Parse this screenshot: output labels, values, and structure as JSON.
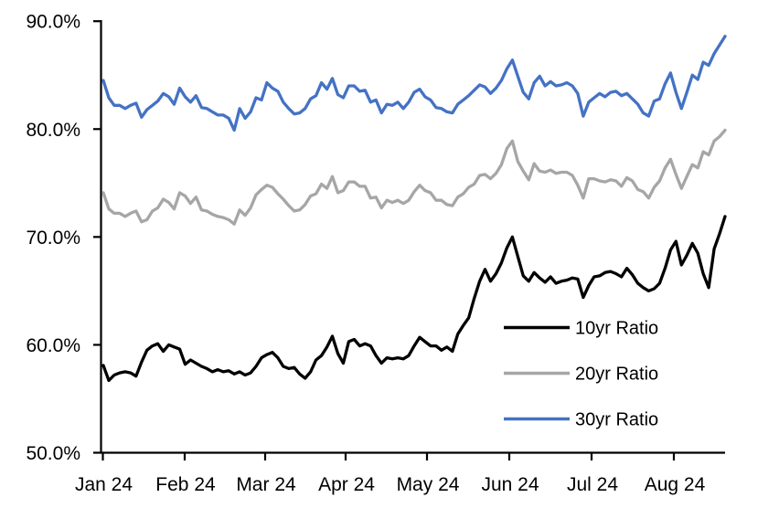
{
  "chart_data": {
    "type": "line",
    "title": "",
    "x_axis": {
      "tick_labels": [
        "Jan 24",
        "Feb 24",
        "Mar 24",
        "Apr 24",
        "May 24",
        "Jun 24",
        "Jul 24",
        "Aug 24"
      ],
      "grid": false
    },
    "y_axis": {
      "tick_labels": [
        "90.0%",
        "80.0%",
        "70.0%",
        "60.0%",
        "50.0%"
      ],
      "tick_values": [
        90,
        80,
        70,
        60,
        50
      ],
      "min": 50,
      "max": 90,
      "unit": "%",
      "grid": false
    },
    "legend": {
      "position": "inside-bottom-right",
      "entries": [
        "10yr Ratio",
        "20yr Ratio",
        "30yr Ratio"
      ]
    },
    "series": [
      {
        "name": "10yr Ratio",
        "color": "#000000",
        "values": [
          58.1,
          56.7,
          57.2,
          57.4,
          57.5,
          57.4,
          57.1,
          58.4,
          59.5,
          59.9,
          60.1,
          59.4,
          60.0,
          59.8,
          59.6,
          58.2,
          58.6,
          58.3,
          58.0,
          57.8,
          57.5,
          57.7,
          57.5,
          57.6,
          57.3,
          57.5,
          57.2,
          57.4,
          58.0,
          58.8,
          59.1,
          59.3,
          58.8,
          58.0,
          57.8,
          57.9,
          57.3,
          56.9,
          57.5,
          58.6,
          59.0,
          59.8,
          60.8,
          59.2,
          58.3,
          60.3,
          60.5,
          59.9,
          60.1,
          59.9,
          59.0,
          58.3,
          58.8,
          58.7,
          58.8,
          58.7,
          59.0,
          59.9,
          60.7,
          60.3,
          59.9,
          59.9,
          59.5,
          59.8,
          59.4,
          61.0,
          61.8,
          62.5,
          64.3,
          65.9,
          67.0,
          65.9,
          66.6,
          67.6,
          69.0,
          70.0,
          68.2,
          66.4,
          65.9,
          66.7,
          66.2,
          65.8,
          66.3,
          65.7,
          65.9,
          66.0,
          66.2,
          66.1,
          64.4,
          65.5,
          66.3,
          66.4,
          66.7,
          66.8,
          66.6,
          66.3,
          67.1,
          66.5,
          65.7,
          65.3,
          65.0,
          65.2,
          65.7,
          67.1,
          68.8,
          69.6,
          67.4,
          68.3,
          69.4,
          68.5,
          66.6,
          65.3,
          68.9,
          70.3,
          71.9
        ]
      },
      {
        "name": "20yr Ratio",
        "color": "#A6A6A6",
        "values": [
          74.1,
          72.6,
          72.2,
          72.2,
          71.9,
          72.2,
          72.4,
          71.4,
          71.6,
          72.4,
          72.7,
          73.5,
          73.2,
          72.6,
          74.1,
          73.8,
          73.1,
          73.7,
          72.5,
          72.4,
          72.1,
          71.9,
          71.8,
          71.6,
          71.2,
          72.5,
          72.0,
          72.7,
          73.9,
          74.4,
          74.8,
          74.6,
          74.0,
          73.5,
          72.9,
          72.4,
          72.5,
          73.0,
          73.8,
          74.0,
          74.9,
          74.5,
          75.6,
          74.1,
          74.3,
          75.1,
          75.1,
          74.7,
          74.7,
          73.6,
          73.7,
          72.7,
          73.4,
          73.2,
          73.4,
          73.1,
          73.4,
          74.2,
          74.8,
          74.3,
          74.1,
          73.4,
          73.4,
          73.0,
          72.9,
          73.7,
          74.0,
          74.6,
          74.9,
          75.7,
          75.8,
          75.4,
          75.9,
          76.7,
          78.2,
          78.9,
          77.0,
          76.1,
          75.3,
          76.8,
          76.1,
          76.0,
          76.2,
          75.9,
          76.0,
          76.0,
          75.7,
          74.8,
          73.6,
          75.4,
          75.4,
          75.2,
          75.1,
          75.3,
          75.2,
          74.7,
          75.5,
          75.2,
          74.4,
          74.2,
          73.6,
          74.6,
          75.2,
          76.4,
          77.2,
          75.8,
          74.5,
          75.6,
          76.7,
          76.4,
          77.9,
          77.6,
          78.9,
          79.3,
          79.9
        ]
      },
      {
        "name": "30yr Ratio",
        "color": "#4472C4",
        "values": [
          84.5,
          82.9,
          82.2,
          82.2,
          81.9,
          82.2,
          82.4,
          81.1,
          81.8,
          82.2,
          82.6,
          83.3,
          83.0,
          82.3,
          83.8,
          83.0,
          82.5,
          83.1,
          82.0,
          81.9,
          81.6,
          81.3,
          81.3,
          81.0,
          79.9,
          81.9,
          81.0,
          81.6,
          82.9,
          82.7,
          84.3,
          83.8,
          83.5,
          82.5,
          81.9,
          81.4,
          81.5,
          81.9,
          82.8,
          83.1,
          84.3,
          83.7,
          84.7,
          83.2,
          82.9,
          84.0,
          84.0,
          83.5,
          83.6,
          82.5,
          82.7,
          81.5,
          82.3,
          82.2,
          82.5,
          81.9,
          82.5,
          83.4,
          83.7,
          83.0,
          82.7,
          82.0,
          81.9,
          81.6,
          81.5,
          82.3,
          82.7,
          83.1,
          83.6,
          84.1,
          83.9,
          83.3,
          83.8,
          84.5,
          85.6,
          86.4,
          84.9,
          83.4,
          82.8,
          84.3,
          84.9,
          84.0,
          84.4,
          84.0,
          84.1,
          84.3,
          84.0,
          83.3,
          81.2,
          82.5,
          82.9,
          83.3,
          83.0,
          83.4,
          83.5,
          83.1,
          83.3,
          82.8,
          82.3,
          81.5,
          81.2,
          82.6,
          82.8,
          84.2,
          85.2,
          83.4,
          81.9,
          83.4,
          85.0,
          84.6,
          86.2,
          85.9,
          87.0,
          87.8,
          88.6
        ]
      }
    ]
  }
}
